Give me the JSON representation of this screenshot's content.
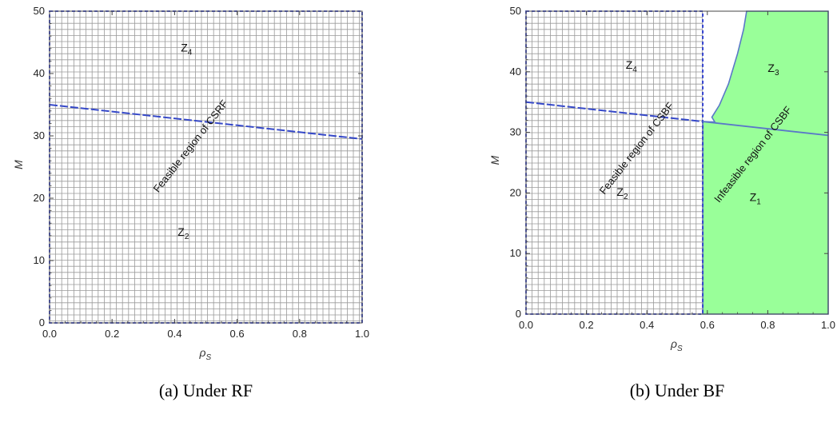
{
  "chart_data": [
    {
      "type": "area",
      "caption": "(a) Under RF",
      "xlabel": "ρ",
      "xlabel_sub": "S",
      "ylabel": "M",
      "xlim": [
        0,
        1
      ],
      "ylim": [
        0,
        50
      ],
      "x_ticks": [
        "0.0",
        "0.2",
        "0.4",
        "0.6",
        "0.8",
        "1.0"
      ],
      "y_ticks": [
        "0",
        "10",
        "20",
        "30",
        "40",
        "50"
      ],
      "threshold_line": {
        "x": [
          0,
          1
        ],
        "y": [
          35,
          29.5
        ]
      },
      "hatched_region": {
        "x": [
          0,
          1
        ],
        "y": [
          0,
          50
        ]
      },
      "zones": [
        {
          "name": "Z",
          "sub": "4",
          "x": 0.42,
          "y": 43.5
        },
        {
          "name": "Z",
          "sub": "2",
          "x": 0.41,
          "y": 14
        }
      ],
      "region_label": {
        "text": "Feasible region of CSRF",
        "x": 0.46,
        "y": 28,
        "angle": -52
      }
    },
    {
      "type": "area",
      "caption": "(b) Under BF",
      "xlabel": "ρ",
      "xlabel_sub": "S",
      "ylabel": "M",
      "xlim": [
        0,
        1
      ],
      "ylim": [
        0,
        50
      ],
      "x_ticks": [
        "0.0",
        "0.2",
        "0.4",
        "0.6",
        "0.8",
        "1.0"
      ],
      "y_ticks": [
        "0",
        "10",
        "20",
        "30",
        "40",
        "50"
      ],
      "threshold_line": {
        "x": [
          0,
          1
        ],
        "y": [
          35,
          29.5
        ]
      },
      "hatched_region": {
        "x": [
          0,
          0.585
        ],
        "y": [
          0,
          50
        ]
      },
      "infeasible_region": {
        "color": "#99ff99",
        "polygon": [
          [
            0.585,
            0
          ],
          [
            1,
            0
          ],
          [
            1,
            50
          ],
          [
            0.73,
            50
          ],
          [
            0.72,
            47
          ],
          [
            0.7,
            43
          ],
          [
            0.67,
            38
          ],
          [
            0.64,
            34.5
          ],
          [
            0.615,
            32.5
          ],
          [
            0.625,
            31.7
          ],
          [
            0.585,
            31.8
          ]
        ]
      },
      "zones": [
        {
          "name": "Z",
          "sub": "4",
          "x": 0.33,
          "y": 40.5
        },
        {
          "name": "Z",
          "sub": "3",
          "x": 0.8,
          "y": 40
        },
        {
          "name": "Z",
          "sub": "2",
          "x": 0.3,
          "y": 19.5
        },
        {
          "name": "Z",
          "sub": "1",
          "x": 0.74,
          "y": 18.7
        }
      ],
      "region_labels": [
        {
          "text": "Feasible region of CSBF",
          "x": 0.375,
          "y": 27,
          "angle": -52
        },
        {
          "text": "Infeasible region of CSBF",
          "x": 0.76,
          "y": 26,
          "angle": -52
        }
      ]
    }
  ]
}
